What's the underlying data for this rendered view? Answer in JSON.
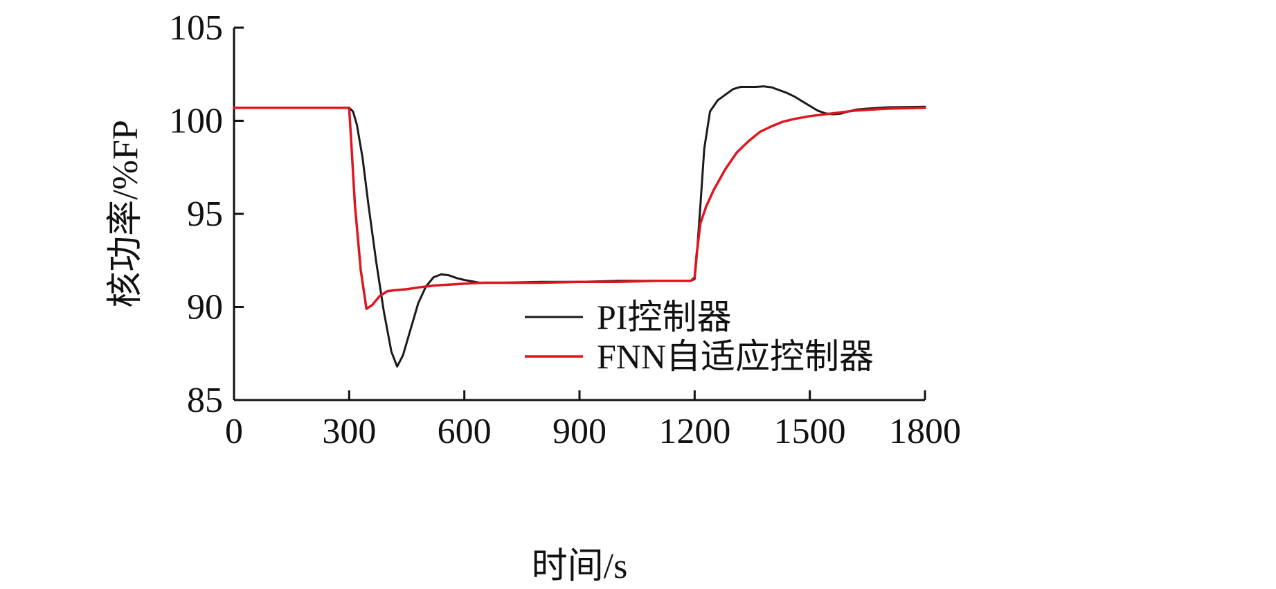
{
  "chart_data": {
    "type": "line",
    "title": "",
    "xlabel": "时间/s",
    "ylabel": "核功率/%FP",
    "xlim": [
      0,
      1800
    ],
    "ylim": [
      85,
      105
    ],
    "xticks": [
      0,
      300,
      600,
      900,
      1200,
      1500,
      1800
    ],
    "yticks": [
      85,
      90,
      95,
      100,
      105
    ],
    "grid": false,
    "legend_position": "bottom-right",
    "series": [
      {
        "name": "PI控制器",
        "color": "#1a1a1a",
        "x": [
          0,
          250,
          300,
          310,
          320,
          335,
          350,
          370,
          390,
          410,
          425,
          440,
          460,
          480,
          500,
          520,
          540,
          560,
          580,
          600,
          640,
          700,
          800,
          900,
          1000,
          1100,
          1190,
          1200,
          1205,
          1215,
          1225,
          1240,
          1260,
          1280,
          1300,
          1320,
          1340,
          1360,
          1380,
          1400,
          1420,
          1440,
          1460,
          1480,
          1500,
          1520,
          1540,
          1560,
          1580,
          1600,
          1620,
          1650,
          1700,
          1800
        ],
        "y": [
          100.7,
          100.7,
          100.7,
          100.5,
          99.8,
          98.0,
          95.5,
          92.5,
          89.8,
          87.6,
          86.8,
          87.4,
          88.8,
          90.2,
          91.1,
          91.6,
          91.75,
          91.7,
          91.55,
          91.45,
          91.3,
          91.3,
          91.35,
          91.35,
          91.4,
          91.4,
          91.4,
          91.5,
          92.6,
          95.5,
          98.5,
          100.5,
          101.1,
          101.4,
          101.7,
          101.82,
          101.82,
          101.82,
          101.85,
          101.8,
          101.65,
          101.5,
          101.3,
          101.05,
          100.8,
          100.55,
          100.4,
          100.35,
          100.38,
          100.5,
          100.6,
          100.65,
          100.72,
          100.75
        ]
      },
      {
        "name": "FNN自适应控制器",
        "color": "#e0141e",
        "x": [
          0,
          250,
          300,
          305,
          315,
          330,
          345,
          360,
          380,
          400,
          420,
          450,
          480,
          520,
          560,
          600,
          650,
          700,
          800,
          900,
          1000,
          1100,
          1190,
          1200,
          1205,
          1215,
          1230,
          1250,
          1280,
          1310,
          1340,
          1370,
          1400,
          1430,
          1460,
          1500,
          1540,
          1580,
          1620,
          1660,
          1700,
          1800
        ],
        "y": [
          100.7,
          100.7,
          100.7,
          99.0,
          95.5,
          92.0,
          89.9,
          90.1,
          90.6,
          90.85,
          90.9,
          90.95,
          91.05,
          91.15,
          91.2,
          91.25,
          91.3,
          91.3,
          91.3,
          91.35,
          91.35,
          91.4,
          91.4,
          91.6,
          92.8,
          94.5,
          95.4,
          96.3,
          97.4,
          98.3,
          98.9,
          99.4,
          99.7,
          99.95,
          100.1,
          100.25,
          100.35,
          100.45,
          100.55,
          100.6,
          100.65,
          100.7
        ]
      }
    ]
  }
}
